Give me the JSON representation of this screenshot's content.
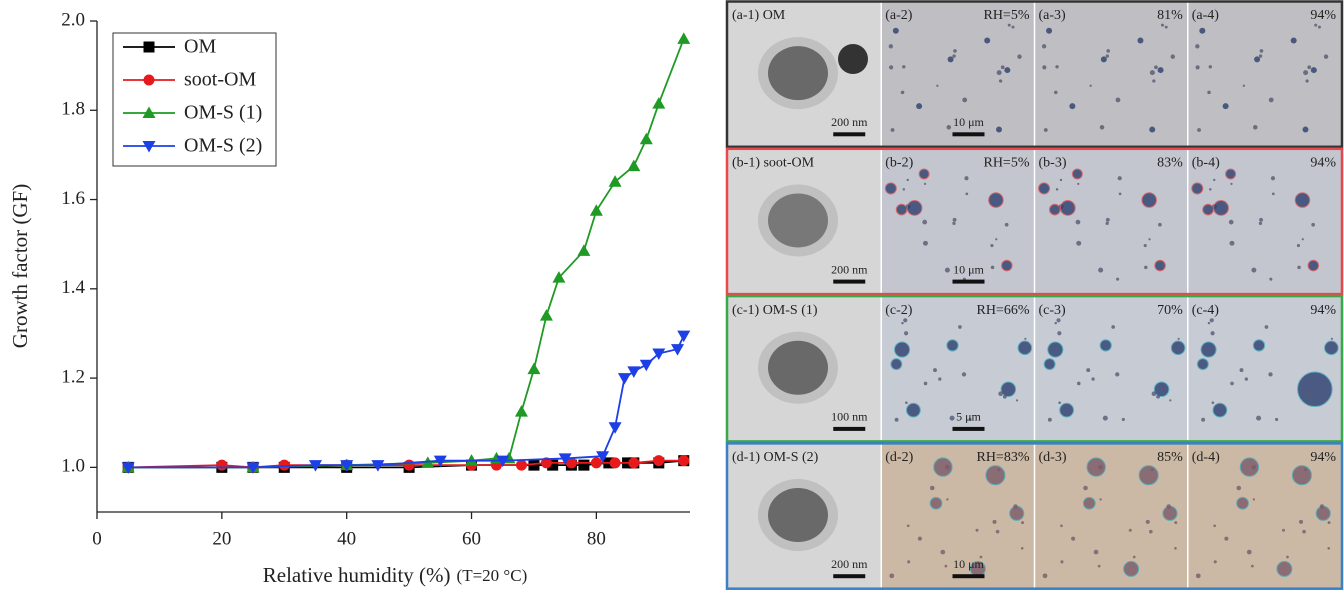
{
  "chart_data": {
    "type": "line",
    "ylabel": "Growth factor (GF)",
    "xlabel": "Relative humidity (%)",
    "xlabel_note": "(T=20 °C)",
    "xlim": [
      0,
      95
    ],
    "xticks": [
      0,
      20,
      40,
      60,
      80
    ],
    "ylim": [
      0.9,
      2.0
    ],
    "yticks": [
      {
        "value": 1.0,
        "label": "1.0"
      },
      {
        "value": 1.2,
        "label": "1.2"
      },
      {
        "value": 1.4,
        "label": "1.4"
      },
      {
        "value": 1.6,
        "label": "1.6"
      },
      {
        "value": 1.8,
        "label": "1.8"
      },
      {
        "value": 2.0,
        "label": "2.0"
      }
    ],
    "legend": "upper left",
    "series": [
      {
        "name": "OM",
        "color": "#000000",
        "marker": "square",
        "x": [
          5,
          20,
          25,
          30,
          40,
          50,
          60,
          70,
          73,
          76,
          78,
          82,
          85,
          86,
          90,
          94
        ],
        "values": [
          1.0,
          1.0,
          1.0,
          1.0,
          1.0,
          1.0,
          1.005,
          1.005,
          1.005,
          1.005,
          1.005,
          1.01,
          1.01,
          1.01,
          1.01,
          1.015
        ]
      },
      {
        "name": "soot-OM",
        "color": "#e8191b",
        "marker": "circle",
        "x": [
          5,
          20,
          25,
          30,
          40,
          50,
          60,
          64,
          68,
          72,
          76,
          80,
          83,
          86,
          90,
          94
        ],
        "values": [
          1.0,
          1.005,
          1.0,
          1.005,
          1.005,
          1.005,
          1.005,
          1.005,
          1.005,
          1.01,
          1.01,
          1.01,
          1.01,
          1.01,
          1.015,
          1.015
        ]
      },
      {
        "name": "OM-S (1)",
        "color": "#1f9a24",
        "marker": "triangle-up",
        "x": [
          5,
          25,
          40,
          53,
          60,
          64,
          66,
          68,
          70,
          72,
          74,
          78,
          80,
          83,
          86,
          88,
          90,
          94
        ],
        "values": [
          1.0,
          1.0,
          1.005,
          1.01,
          1.015,
          1.02,
          1.02,
          1.125,
          1.22,
          1.34,
          1.425,
          1.485,
          1.575,
          1.64,
          1.675,
          1.735,
          1.815,
          1.96
        ]
      },
      {
        "name": "OM-S (2)",
        "color": "#1d3fe6",
        "marker": "triangle-down",
        "x": [
          5,
          25,
          35,
          40,
          45,
          55,
          65,
          75,
          81,
          83,
          84.5,
          86,
          88,
          90,
          93,
          94
        ],
        "values": [
          1.0,
          1.0,
          1.005,
          1.005,
          1.005,
          1.015,
          1.015,
          1.02,
          1.025,
          1.09,
          1.2,
          1.215,
          1.23,
          1.255,
          1.265,
          1.295
        ]
      }
    ]
  },
  "panels": [
    {
      "color": "#333333",
      "tint": "#bfbfc3",
      "cells": [
        {
          "label": "(a-1) OM",
          "scale": "200 nm"
        },
        {
          "label": "(a-2)",
          "rh": "RH=5%",
          "scale": "10 μm"
        },
        {
          "label": "(a-3)",
          "rh": "81%"
        },
        {
          "label": "(a-4)",
          "rh": "94%"
        }
      ]
    },
    {
      "color": "#e8474b",
      "tint": "#c3c6ce",
      "cells": [
        {
          "label": "(b-1) soot-OM",
          "scale": "200 nm"
        },
        {
          "label": "(b-2)",
          "rh": "RH=5%",
          "scale": "10 μm"
        },
        {
          "label": "(b-3)",
          "rh": "83%"
        },
        {
          "label": "(b-4)",
          "rh": "94%"
        }
      ]
    },
    {
      "color": "#3aa84a",
      "tint": "#c7cbd4",
      "cells": [
        {
          "label": "(c-1) OM-S (1)",
          "scale": "100 nm"
        },
        {
          "label": "(c-2)",
          "rh": "RH=66%",
          "scale": "5 μm"
        },
        {
          "label": "(c-3)",
          "rh": "70%"
        },
        {
          "label": "(c-4)",
          "rh": "94%"
        }
      ]
    },
    {
      "color": "#3b7fc4",
      "tint": "#cbb9a5",
      "cells": [
        {
          "label": "(d-1) OM-S (2)",
          "scale": "200 nm"
        },
        {
          "label": "(d-2)",
          "rh": "RH=83%",
          "scale": "10 μm"
        },
        {
          "label": "(d-3)",
          "rh": "85%"
        },
        {
          "label": "(d-4)",
          "rh": "94%"
        }
      ]
    }
  ]
}
